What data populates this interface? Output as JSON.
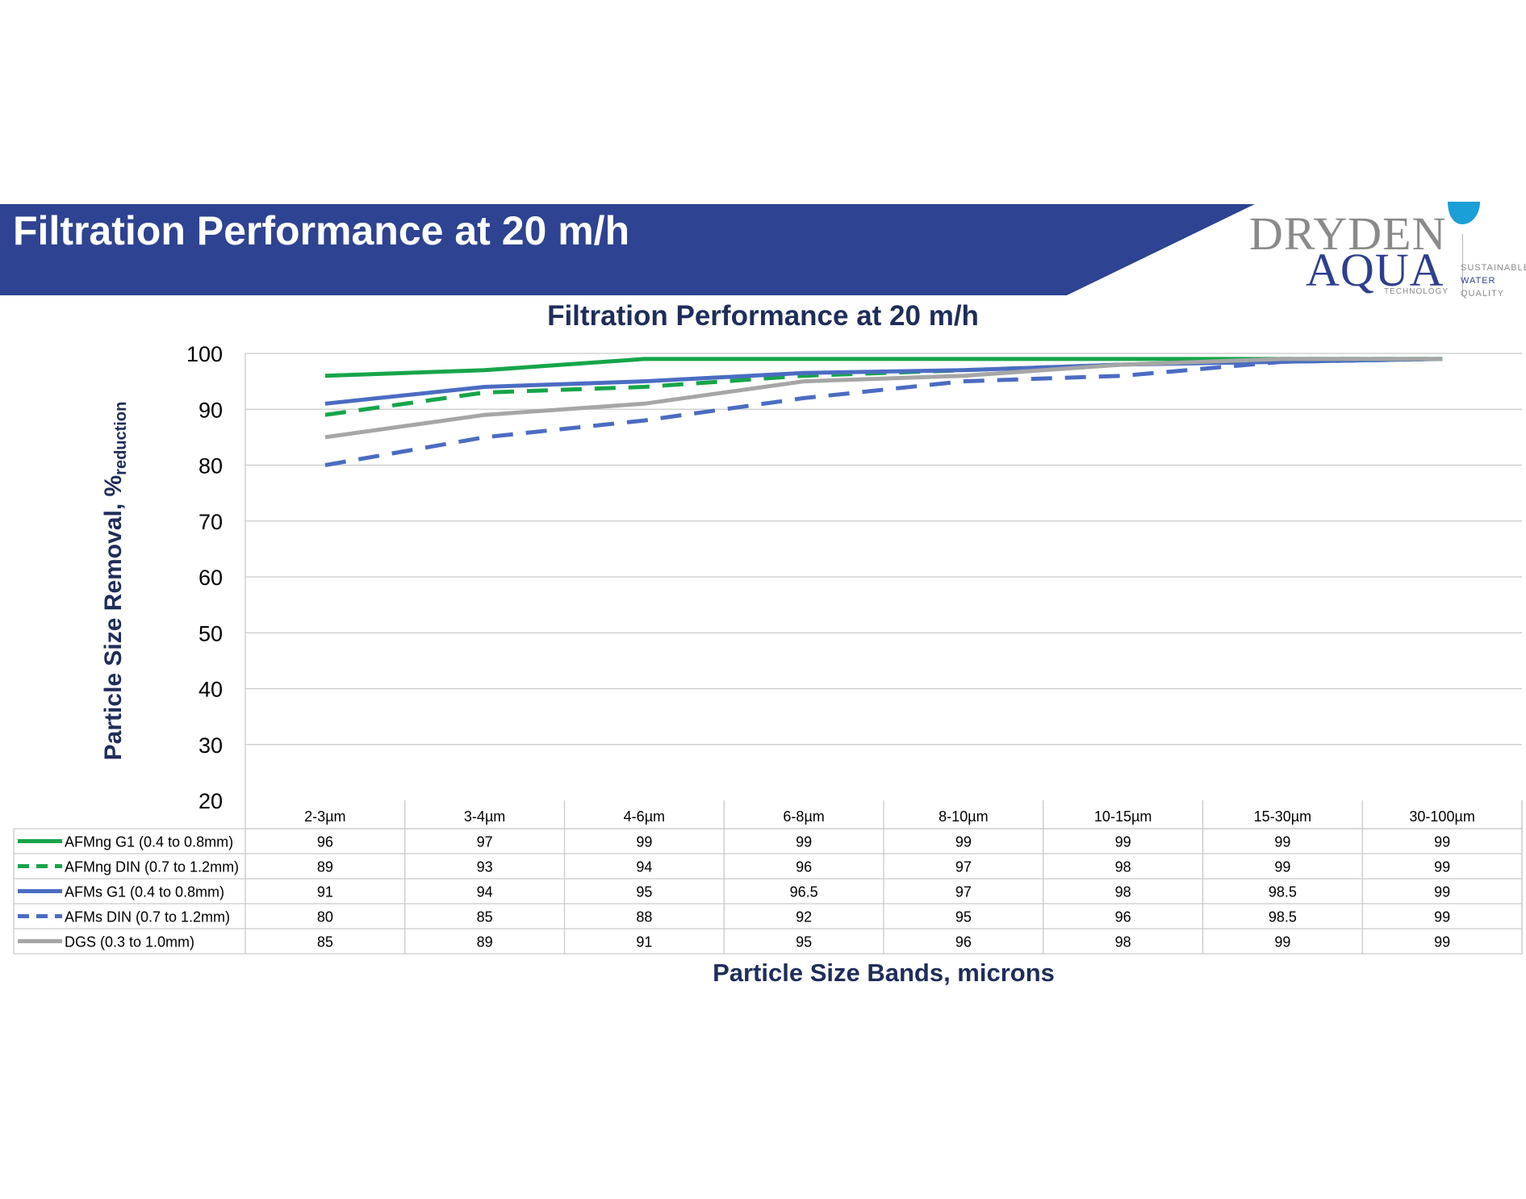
{
  "header": {
    "title": "Filtration Performance at 20 m/h",
    "banner_color": "#2e4391"
  },
  "logo": {
    "line1": "DRYDEN",
    "line2": "AQUA",
    "sub": "TECHNOLOGY",
    "tagline": [
      "SUSTAINABLE",
      "WATER",
      "QUALITY"
    ],
    "colors": {
      "grey": "#8a8a8a",
      "blue": "#2e3f8e",
      "drop": "#1a9fd6"
    }
  },
  "chart_data": {
    "type": "line",
    "title": "Filtration Performance at 20 m/h",
    "ylabel": "Particle Size Removal, %",
    "ylabel_sub": "reduction",
    "xlabel": "Particle Size Bands, microns",
    "ylim": [
      20,
      100
    ],
    "yticks": [
      20,
      30,
      40,
      50,
      60,
      70,
      80,
      90,
      100
    ],
    "grid": true,
    "legend": "data-table",
    "categories": [
      "2-3µm",
      "3-4µm",
      "4-6µm",
      "6-8µm",
      "8-10µm",
      "10-15µm",
      "15-30µm",
      "30-100µm"
    ],
    "series": [
      {
        "name": "AFMng G1 (0.4 to 0.8mm)",
        "color": "#16a54a",
        "dashed": false,
        "values": [
          96,
          97,
          99,
          99,
          99,
          99,
          99,
          99
        ]
      },
      {
        "name": "AFMng DIN (0.7 to 1.2mm)",
        "color": "#16a54a",
        "dashed": true,
        "values": [
          89,
          93,
          94,
          96,
          97,
          98,
          99,
          99
        ]
      },
      {
        "name": "AFMs G1 (0.4 to 0.8mm)",
        "color": "#4a6cc2",
        "dashed": false,
        "values": [
          91,
          94,
          95,
          96.5,
          97,
          98,
          98.5,
          99
        ]
      },
      {
        "name": "AFMs DIN (0.7 to 1.2mm)",
        "color": "#4a6cc2",
        "dashed": true,
        "values": [
          80,
          85,
          88,
          92,
          95,
          96,
          98.5,
          99
        ]
      },
      {
        "name": "DGS (0.3 to 1.0mm)",
        "color": "#a6a6a6",
        "dashed": false,
        "values": [
          85,
          89,
          91,
          95,
          96,
          98,
          99,
          99
        ]
      }
    ],
    "table_values": [
      [
        "96",
        "97",
        "99",
        "99",
        "99",
        "99",
        "99",
        "99"
      ],
      [
        "89",
        "93",
        "94",
        "96",
        "97",
        "98",
        "99",
        "99"
      ],
      [
        "91",
        "94",
        "95",
        "96.5",
        "97",
        "98",
        "98.5",
        "99"
      ],
      [
        "80",
        "85",
        "88",
        "92",
        "95",
        "96",
        "98.5",
        "99"
      ],
      [
        "85",
        "89",
        "91",
        "95",
        "96",
        "98",
        "99",
        "99"
      ]
    ]
  }
}
